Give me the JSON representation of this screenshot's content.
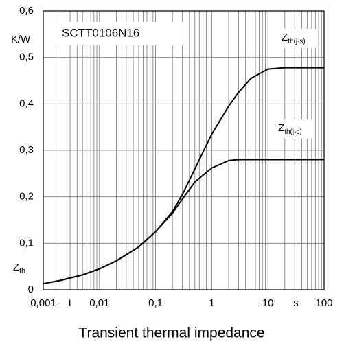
{
  "chart_data": {
    "type": "line",
    "title": "Transient thermal impedance",
    "annotation": "SCTT0106N16",
    "y_label": "Zth",
    "y_unit": "K/W",
    "x_label": "t",
    "x_unit": "s",
    "xscale": "log",
    "grid": true,
    "x": [
      0.001,
      0.002,
      0.005,
      0.01,
      0.02,
      0.05,
      0.1,
      0.2,
      0.3,
      0.5,
      1,
      2,
      3,
      5,
      10,
      20,
      100
    ],
    "series": [
      {
        "name": "Zth(j-s)",
        "color": "#000000",
        "values": [
          0.013,
          0.02,
          0.032,
          0.045,
          0.062,
          0.092,
          0.125,
          0.168,
          0.205,
          0.26,
          0.335,
          0.395,
          0.425,
          0.455,
          0.475,
          0.478,
          0.478
        ]
      },
      {
        "name": "Zth(j-c)",
        "color": "#000000",
        "values": [
          0.013,
          0.02,
          0.032,
          0.045,
          0.062,
          0.092,
          0.125,
          0.165,
          0.195,
          0.232,
          0.262,
          0.278,
          0.28,
          0.28,
          0.28,
          0.28,
          0.28
        ]
      }
    ],
    "xlim": [
      0.001,
      100
    ],
    "xticks": [
      {
        "value": 0.001,
        "label": "0,001"
      },
      {
        "value": 0.01,
        "label": "0,01"
      },
      {
        "value": 0.1,
        "label": "0,1"
      },
      1,
      10,
      100
    ],
    "ylim": [
      0,
      0.6
    ],
    "yticks": [
      0,
      {
        "value": 0.1,
        "label": "0,1"
      },
      {
        "value": 0.2,
        "label": "0,2"
      },
      {
        "value": 0.3,
        "label": "0,3"
      },
      {
        "value": 0.4,
        "label": "0,4"
      },
      {
        "value": 0.5,
        "label": "0,5"
      },
      {
        "value": 0.6,
        "label": "0,6"
      }
    ]
  }
}
